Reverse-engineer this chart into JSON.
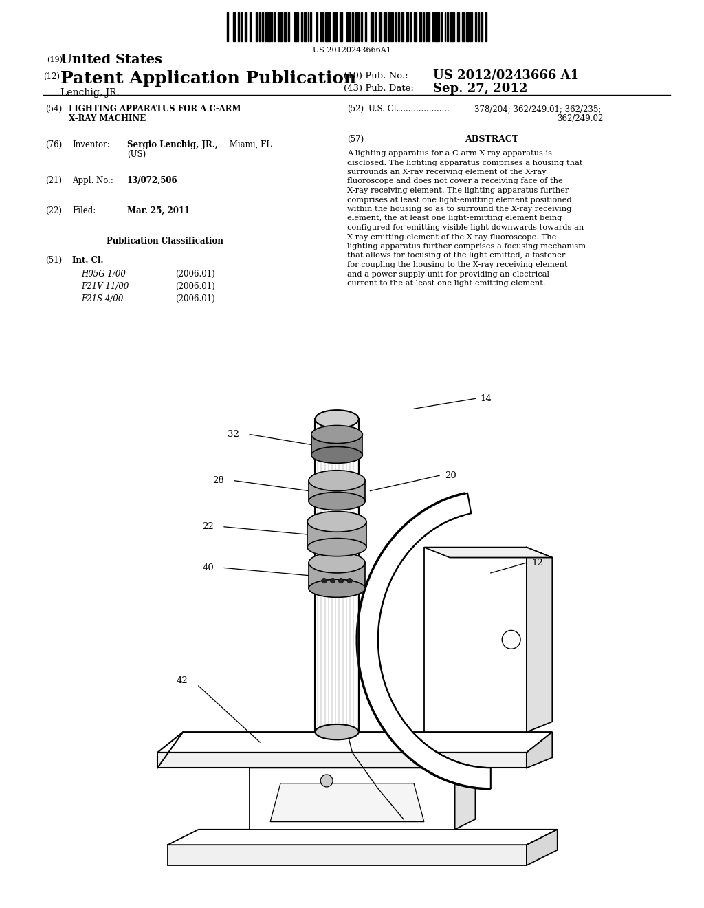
{
  "background_color": "#ffffff",
  "barcode_text": "US 20120243666A1",
  "header": {
    "line1_num": "(19)",
    "line1_text": "United States",
    "line2_num": "(12)",
    "line2_text": "Patent Application Publication",
    "line3_left": "Lenchig, JR.",
    "pub_no_label": "(10) Pub. No.:",
    "pub_no_value": "US 2012/0243666 A1",
    "pub_date_label": "(43) Pub. Date:",
    "pub_date_value": "Sep. 27, 2012"
  },
  "left_col": {
    "title_num": "(54)",
    "title_line1": "LIGHTING APPARATUS FOR A C-ARM",
    "title_line2": "X-RAY MACHINE",
    "inventor_num": "(76)",
    "inventor_label": "Inventor:",
    "inventor_bold": "Sergio Lenchig, JR.,",
    "inventor_rest": " Miami, FL",
    "inventor_us": "(US)",
    "appl_num": "(21)",
    "appl_label": "Appl. No.:",
    "appl_value": "13/072,506",
    "filed_num": "(22)",
    "filed_label": "Filed:",
    "filed_value": "Mar. 25, 2011",
    "pub_class_title": "Publication Classification",
    "int_cl_num": "(51)",
    "int_cl_label": "Int. Cl.",
    "classifications": [
      [
        "H05G 1/00",
        "(2006.01)"
      ],
      [
        "F21V 11/00",
        "(2006.01)"
      ],
      [
        "F21S 4/00",
        "(2006.01)"
      ]
    ]
  },
  "right_col": {
    "us_cl_num": "(52)",
    "us_cl_label": "U.S. Cl.",
    "us_cl_dots": ".....................",
    "us_cl_value1": "378/204; 362/249.01; 362/235;",
    "us_cl_value2": "362/249.02",
    "abstract_num": "(57)",
    "abstract_title": "ABSTRACT",
    "abstract_text": "A lighting apparatus for a C-arm X-ray apparatus is disclosed. The lighting apparatus comprises a housing that surrounds an X-ray receiving element of the X-ray fluoroscope and does not cover a receiving face of the X-ray receiving element. The lighting apparatus further comprises at least one light-emitting element positioned within the housing so as to surround the X-ray receiving element, the at least one light-emitting element being configured for emitting visible light downwards towards an X-ray emitting element of the X-ray fluoroscope. The lighting apparatus further comprises a focusing mechanism that allows for focusing of the light emitted, a fastener for coupling the housing to the X-ray receiving element and a power supply unit for providing an electrical current to the at least one light-emitting element."
  }
}
